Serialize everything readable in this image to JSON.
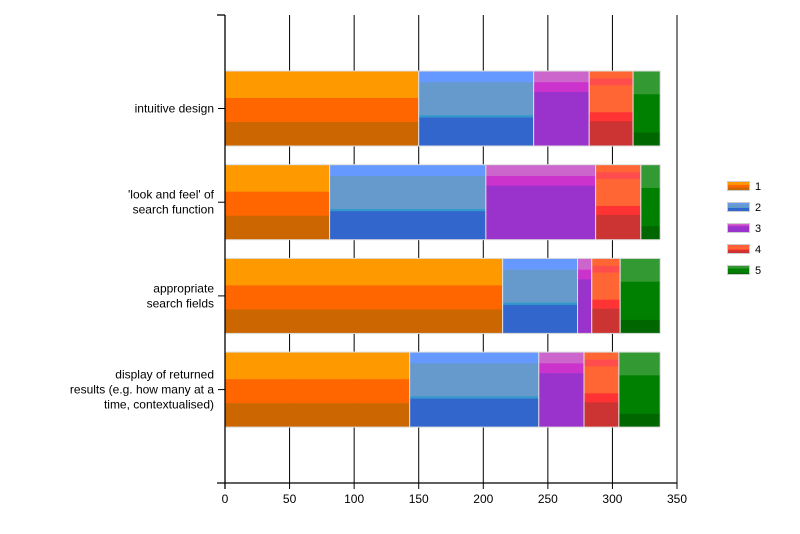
{
  "chart_data": {
    "type": "bar",
    "orientation": "horizontal",
    "stacked": true,
    "title": "",
    "xlabel": "",
    "ylabel": "",
    "xlim": [
      0,
      350
    ],
    "x_ticks": [
      0,
      50,
      100,
      150,
      200,
      250,
      300,
      350
    ],
    "grid": "vertical gridlines at each x tick",
    "legend_position": "right",
    "categories": [
      [
        "intuitive design"
      ],
      [
        "'look and feel' of",
        "search function"
      ],
      [
        "appropriate",
        "search fields"
      ],
      [
        "display of returned",
        "results (e.g. how many at a",
        "time, contextualised)"
      ]
    ],
    "series": [
      {
        "name": "1",
        "color": "#ff9900",
        "values": [
          150,
          81,
          215,
          143
        ]
      },
      {
        "name": "2",
        "color": "#6699cc",
        "values": [
          89,
          121,
          58,
          100
        ]
      },
      {
        "name": "3",
        "color": "#9933cc",
        "values": [
          43,
          85,
          11,
          35
        ]
      },
      {
        "name": "4",
        "color": "#ff6633",
        "values": [
          34,
          35,
          22,
          27
        ]
      },
      {
        "name": "5",
        "color": "#008000",
        "values": [
          21,
          15,
          31,
          32
        ]
      }
    ]
  }
}
